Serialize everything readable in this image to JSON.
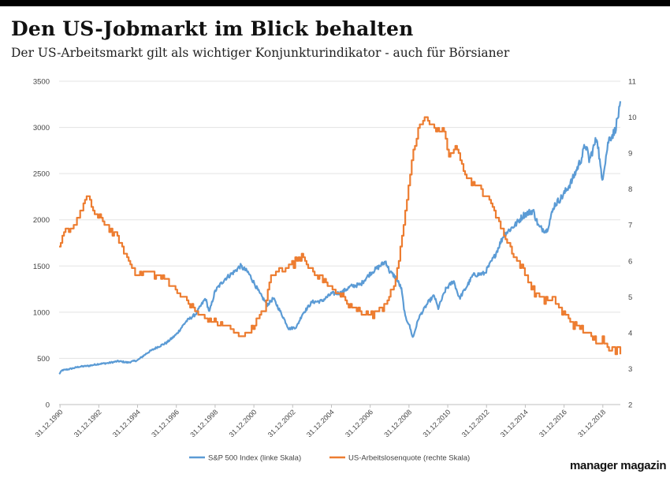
{
  "header": {
    "title": "Den US-Jobmarkt im Blick behalten",
    "subtitle": "Der US-Arbeitsmarkt gilt als wichtiger Konjunkturindikator - auch für Börsianer"
  },
  "brand": {
    "name": "manager magazin"
  },
  "chart_data": {
    "type": "line",
    "title": "Den US-Jobmarkt im Blick behalten",
    "x_tick_labels": [
      "31.12.1990",
      "31.12.1992",
      "31.12.1994",
      "31.12.1996",
      "31.12.1998",
      "31.12.2000",
      "31.12.2002",
      "31.12.2004",
      "31.12.2006",
      "31.12.2008",
      "31.12.2010",
      "31.12.2012",
      "31.12.2014",
      "31.12.2016",
      "31.12.2018"
    ],
    "x_range": [
      1990.95,
      2019.9
    ],
    "y_left": {
      "ticks": [
        "0",
        "500",
        "1000",
        "1500",
        "2000",
        "2500",
        "3000",
        "3500"
      ],
      "ylim": [
        0,
        3500
      ]
    },
    "y_right": {
      "ticks": [
        "2",
        "3",
        "4",
        "5",
        "6",
        "7",
        "8",
        "9",
        "10",
        "11"
      ],
      "ylim": [
        2,
        11
      ]
    },
    "legend_position": "bottom",
    "series": [
      {
        "name": "S&P 500 Index (linke Skala)",
        "axis": "left",
        "color": "#5b9bd5",
        "points": [
          [
            1990.95,
            330
          ],
          [
            1991.1,
            370
          ],
          [
            1991.5,
            385
          ],
          [
            1992.0,
            410
          ],
          [
            1992.5,
            420
          ],
          [
            1993.0,
            440
          ],
          [
            1993.5,
            450
          ],
          [
            1994.0,
            470
          ],
          [
            1994.5,
            455
          ],
          [
            1995.0,
            480
          ],
          [
            1995.5,
            560
          ],
          [
            1996.0,
            620
          ],
          [
            1996.5,
            670
          ],
          [
            1997.0,
            760
          ],
          [
            1997.5,
            900
          ],
          [
            1998.0,
            980
          ],
          [
            1998.5,
            1150
          ],
          [
            1998.7,
            1000
          ],
          [
            1999.0,
            1230
          ],
          [
            1999.5,
            1360
          ],
          [
            2000.0,
            1440
          ],
          [
            2000.3,
            1500
          ],
          [
            2000.7,
            1430
          ],
          [
            2001.0,
            1320
          ],
          [
            2001.3,
            1200
          ],
          [
            2001.7,
            1080
          ],
          [
            2002.0,
            1150
          ],
          [
            2002.5,
            950
          ],
          [
            2002.8,
            820
          ],
          [
            2003.2,
            840
          ],
          [
            2003.5,
            980
          ],
          [
            2004.0,
            1110
          ],
          [
            2004.5,
            1120
          ],
          [
            2005.0,
            1200
          ],
          [
            2005.5,
            1210
          ],
          [
            2006.0,
            1280
          ],
          [
            2006.5,
            1300
          ],
          [
            2007.0,
            1420
          ],
          [
            2007.5,
            1500
          ],
          [
            2007.8,
            1550
          ],
          [
            2008.0,
            1440
          ],
          [
            2008.3,
            1380
          ],
          [
            2008.6,
            1260
          ],
          [
            2008.8,
            950
          ],
          [
            2009.0,
            870
          ],
          [
            2009.2,
            720
          ],
          [
            2009.5,
            940
          ],
          [
            2010.0,
            1110
          ],
          [
            2010.3,
            1180
          ],
          [
            2010.5,
            1040
          ],
          [
            2010.9,
            1250
          ],
          [
            2011.3,
            1340
          ],
          [
            2011.6,
            1150
          ],
          [
            2011.9,
            1250
          ],
          [
            2012.3,
            1400
          ],
          [
            2012.9,
            1420
          ],
          [
            2013.4,
            1600
          ],
          [
            2013.9,
            1840
          ],
          [
            2014.5,
            1950
          ],
          [
            2014.9,
            2050
          ],
          [
            2015.4,
            2100
          ],
          [
            2015.7,
            1920
          ],
          [
            2016.1,
            1880
          ],
          [
            2016.5,
            2160
          ],
          [
            2016.9,
            2250
          ],
          [
            2017.4,
            2420
          ],
          [
            2017.9,
            2670
          ],
          [
            2018.1,
            2820
          ],
          [
            2018.3,
            2640
          ],
          [
            2018.7,
            2900
          ],
          [
            2018.95,
            2420
          ],
          [
            2019.0,
            2480
          ],
          [
            2019.3,
            2870
          ],
          [
            2019.6,
            2950
          ],
          [
            2019.9,
            3230
          ]
        ]
      },
      {
        "name": "US-Arbeitslosenquote (rechte Skala)",
        "axis": "right",
        "color": "#ed7d31",
        "points": [
          [
            1990.95,
            6.3
          ],
          [
            1991.25,
            6.8
          ],
          [
            1991.7,
            7.0
          ],
          [
            1992.0,
            7.3
          ],
          [
            1992.4,
            7.8
          ],
          [
            1992.8,
            7.3
          ],
          [
            1993.2,
            7.1
          ],
          [
            1993.5,
            6.9
          ],
          [
            1994.0,
            6.6
          ],
          [
            1994.5,
            6.0
          ],
          [
            1995.0,
            5.6
          ],
          [
            1995.5,
            5.7
          ],
          [
            1996.0,
            5.6
          ],
          [
            1996.5,
            5.5
          ],
          [
            1997.0,
            5.2
          ],
          [
            1997.5,
            4.9
          ],
          [
            1998.0,
            4.6
          ],
          [
            1998.5,
            4.4
          ],
          [
            1999.0,
            4.3
          ],
          [
            1999.5,
            4.2
          ],
          [
            2000.0,
            4.0
          ],
          [
            2000.5,
            3.9
          ],
          [
            2001.0,
            4.2
          ],
          [
            2001.5,
            4.6
          ],
          [
            2001.9,
            5.6
          ],
          [
            2002.5,
            5.8
          ],
          [
            2003.0,
            5.9
          ],
          [
            2003.5,
            6.2
          ],
          [
            2004.0,
            5.7
          ],
          [
            2004.5,
            5.5
          ],
          [
            2005.0,
            5.3
          ],
          [
            2005.5,
            5.0
          ],
          [
            2006.0,
            4.7
          ],
          [
            2006.5,
            4.6
          ],
          [
            2007.0,
            4.5
          ],
          [
            2007.5,
            4.6
          ],
          [
            2008.0,
            5.0
          ],
          [
            2008.3,
            5.5
          ],
          [
            2008.6,
            6.5
          ],
          [
            2008.9,
            7.8
          ],
          [
            2009.2,
            9.0
          ],
          [
            2009.5,
            9.7
          ],
          [
            2009.9,
            10.0
          ],
          [
            2010.3,
            9.7
          ],
          [
            2010.8,
            9.6
          ],
          [
            2011.0,
            9.0
          ],
          [
            2011.5,
            9.1
          ],
          [
            2012.0,
            8.3
          ],
          [
            2012.5,
            8.1
          ],
          [
            2013.0,
            7.8
          ],
          [
            2013.5,
            7.3
          ],
          [
            2014.0,
            6.6
          ],
          [
            2014.5,
            6.1
          ],
          [
            2015.0,
            5.6
          ],
          [
            2015.5,
            5.1
          ],
          [
            2016.0,
            4.9
          ],
          [
            2016.5,
            4.9
          ],
          [
            2017.0,
            4.5
          ],
          [
            2017.5,
            4.2
          ],
          [
            2018.0,
            4.1
          ],
          [
            2018.5,
            3.8
          ],
          [
            2019.0,
            3.8
          ],
          [
            2019.3,
            3.6
          ],
          [
            2019.6,
            3.5
          ],
          [
            2019.9,
            3.5
          ]
        ]
      }
    ]
  }
}
